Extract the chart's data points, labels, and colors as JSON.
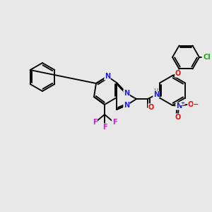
{
  "bg": "#e8e8e8",
  "lw": 1.35,
  "fs": 7.0,
  "colors": {
    "N": "#2222dd",
    "O": "#dd1111",
    "F": "#dd11dd",
    "Cl": "#11aa11",
    "H": "#888888",
    "bond": "#000000"
  }
}
